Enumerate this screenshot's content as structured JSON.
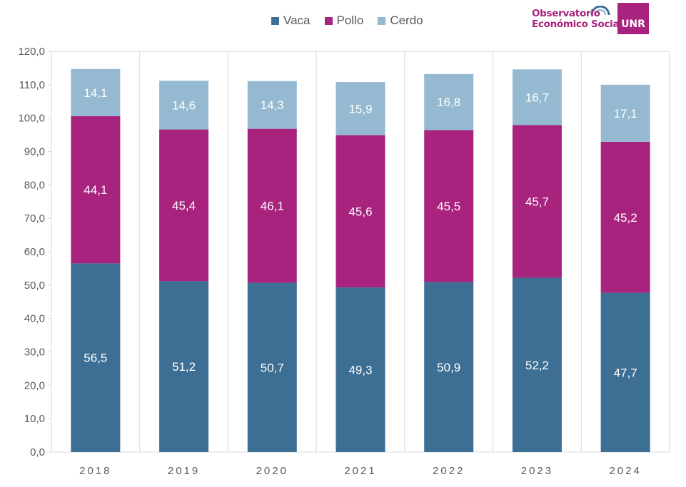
{
  "legend": [
    {
      "label": "Vaca",
      "color": "#3d6e93"
    },
    {
      "label": "Pollo",
      "color": "#a8237e"
    },
    {
      "label": "Cerdo",
      "color": "#94b9d0"
    }
  ],
  "logo": {
    "line1": "Observatorio",
    "line2": "Económico Social",
    "badge": "UNR"
  },
  "chart_data": {
    "type": "bar",
    "stacked": true,
    "categories": [
      "2018",
      "2019",
      "2020",
      "2021",
      "2022",
      "2023",
      "2024"
    ],
    "series": [
      {
        "name": "Vaca",
        "color": "#3d6e93",
        "values": [
          56.5,
          51.2,
          50.7,
          49.3,
          50.9,
          52.2,
          47.7
        ],
        "labels": [
          "56,5",
          "51,2",
          "50,7",
          "49,3",
          "50,9",
          "52,2",
          "47,7"
        ]
      },
      {
        "name": "Pollo",
        "color": "#a8237e",
        "values": [
          44.1,
          45.4,
          46.1,
          45.6,
          45.5,
          45.7,
          45.2
        ],
        "labels": [
          "44,1",
          "45,4",
          "46,1",
          "45,6",
          "45,5",
          "45,7",
          "45,2"
        ]
      },
      {
        "name": "Cerdo",
        "color": "#94b9d0",
        "values": [
          14.1,
          14.6,
          14.3,
          15.9,
          16.8,
          16.7,
          17.1
        ],
        "labels": [
          "14,1",
          "14,6",
          "14,3",
          "15,9",
          "16,8",
          "16,7",
          "17,1"
        ]
      }
    ],
    "ylim": [
      0,
      120
    ],
    "yticks": [
      "0,0",
      "10,0",
      "20,0",
      "30,0",
      "40,0",
      "50,0",
      "60,0",
      "70,0",
      "80,0",
      "90,0",
      "100,0",
      "110,0",
      "120,0"
    ],
    "title": "",
    "xlabel": "",
    "ylabel": "",
    "legend_position": "top",
    "grid": false
  }
}
